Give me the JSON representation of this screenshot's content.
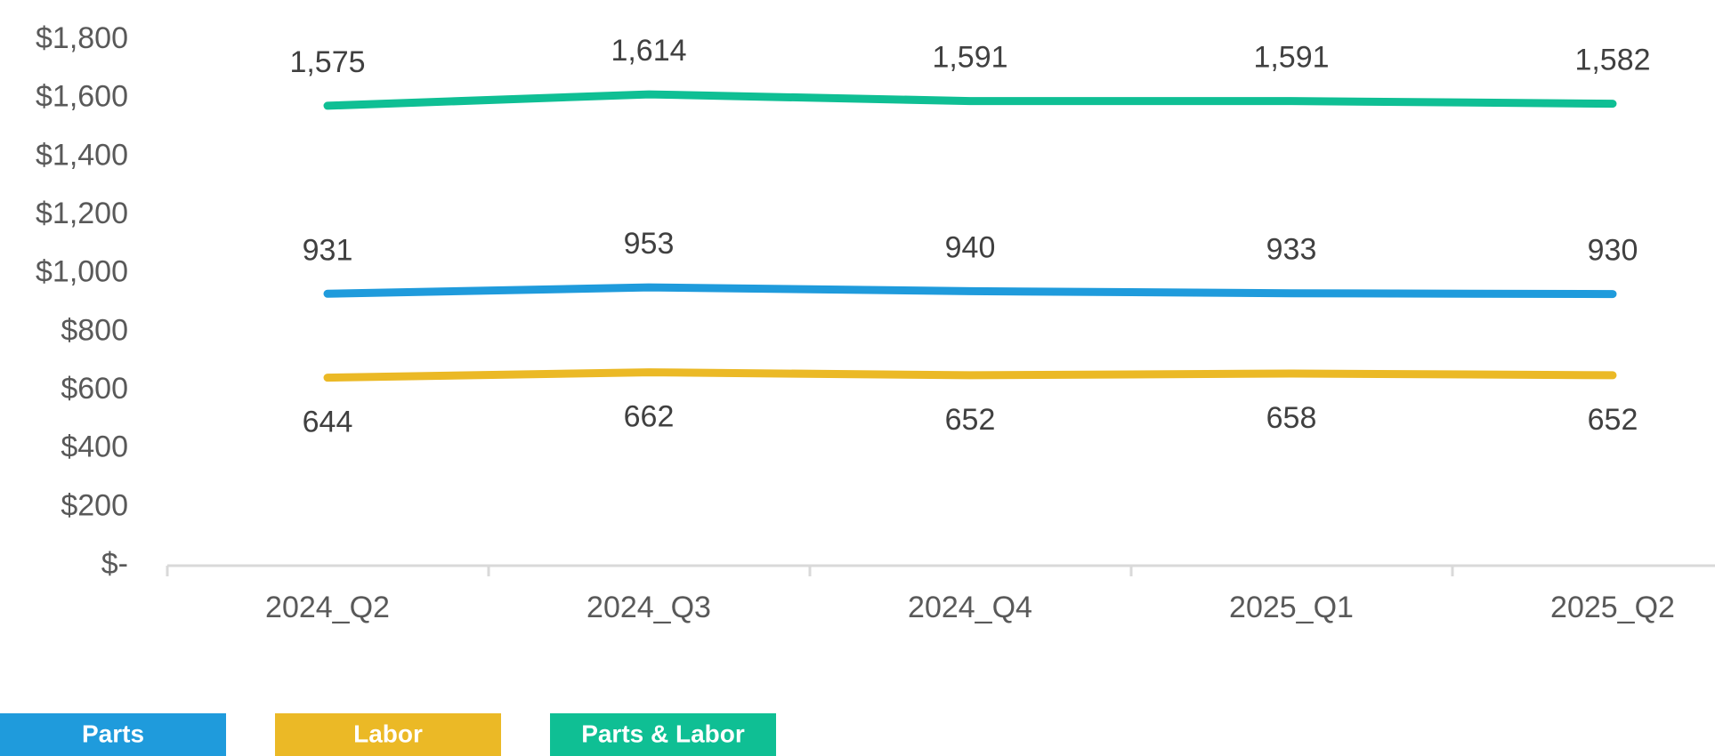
{
  "chart_data": {
    "type": "line",
    "categories": [
      "2024_Q2",
      "2024_Q3",
      "2024_Q4",
      "2025_Q1",
      "2025_Q2"
    ],
    "series": [
      {
        "name": "Parts",
        "values": [
          931,
          953,
          940,
          933,
          930
        ],
        "labels": [
          "931",
          "953",
          "940",
          "933",
          "930"
        ],
        "color": "#1f9bdc",
        "label_position": "above"
      },
      {
        "name": "Labor",
        "values": [
          644,
          662,
          652,
          658,
          652
        ],
        "labels": [
          "644",
          "662",
          "652",
          "658",
          "652"
        ],
        "color": "#ebb926",
        "label_position": "below"
      },
      {
        "name": "Parts & Labor",
        "values": [
          1575,
          1614,
          1591,
          1591,
          1582
        ],
        "labels": [
          "1,575",
          "1,614",
          "1,591",
          "1,591",
          "1,582"
        ],
        "color": "#0fbf94",
        "label_position": "above"
      }
    ],
    "y_ticks": [
      0,
      200,
      400,
      600,
      800,
      1000,
      1200,
      1400,
      1600,
      1800
    ],
    "y_tick_labels": [
      "$-",
      "$200",
      "$400",
      "$600",
      "$800",
      "$1,000",
      "$1,200",
      "$1,400",
      "$1,600",
      "$1,800"
    ],
    "ylim": [
      0,
      1800
    ],
    "title": "",
    "xlabel": "",
    "ylabel": "",
    "grid": false,
    "legend_placement": "bottom-left"
  }
}
